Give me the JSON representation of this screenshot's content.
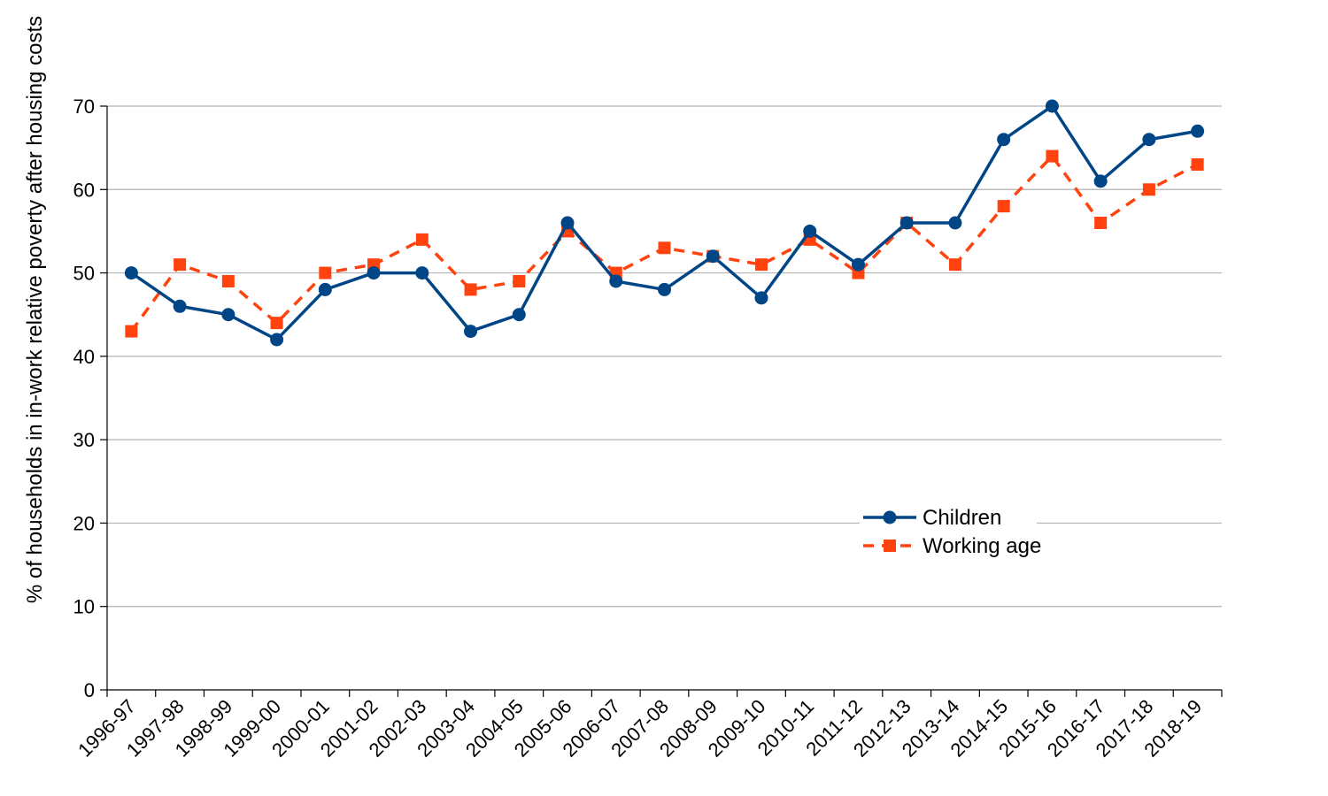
{
  "chart_data": {
    "type": "line",
    "title": "",
    "xlabel": "",
    "ylabel": "% of households in in-work relative poverty after housing costs",
    "ylim": [
      0,
      70
    ],
    "yticks": [
      0,
      10,
      20,
      30,
      40,
      50,
      60,
      70
    ],
    "grid": true,
    "legend_position": "lower-right",
    "categories": [
      "1996-97",
      "1997-98",
      "1998-99",
      "1999-00",
      "2000-01",
      "2001-02",
      "2002-03",
      "2003-04",
      "2004-05",
      "2005-06",
      "2006-07",
      "2007-08",
      "2008-09",
      "2009-10",
      "2010-11",
      "2011-12",
      "2012-13",
      "2013-14",
      "2014-15",
      "2015-16",
      "2016-17",
      "2017-18",
      "2018-19"
    ],
    "series": [
      {
        "name": "Children",
        "color": "#004586",
        "marker": "circle",
        "line_style": "solid",
        "values": [
          50,
          46,
          45,
          42,
          48,
          50,
          50,
          43,
          45,
          56,
          49,
          48,
          52,
          47,
          55,
          51,
          56,
          56,
          66,
          70,
          61,
          66,
          67
        ]
      },
      {
        "name": "Working age",
        "color": "#ff420e",
        "marker": "square",
        "line_style": "dashed",
        "values": [
          43,
          51,
          49,
          44,
          50,
          51,
          54,
          48,
          49,
          55,
          50,
          53,
          52,
          51,
          54,
          50,
          56,
          51,
          58,
          64,
          56,
          60,
          63
        ]
      }
    ]
  }
}
